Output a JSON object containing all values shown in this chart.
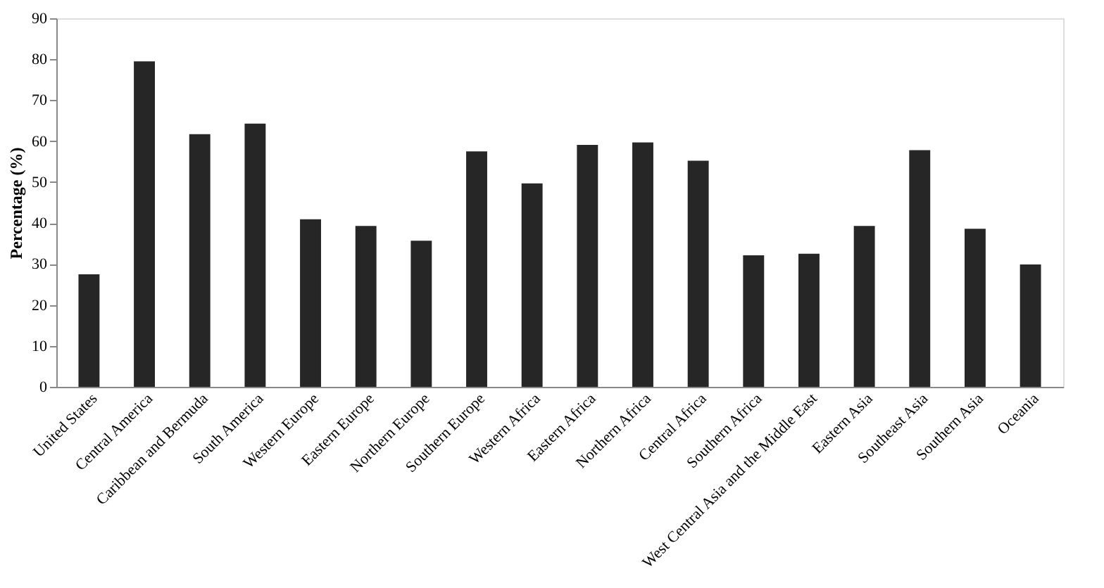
{
  "chart_data": {
    "type": "bar",
    "ylabel": "Percentage (%)",
    "categories": [
      "United States",
      "Central America",
      "Caribbean and Bermuda",
      "South America",
      "Western Europe",
      "Eastern Europe",
      "Northern Europe",
      "Southern Europe",
      "Western Africa",
      "Eastern Africa",
      "Northern Africa",
      "Central Africa",
      "Southern Africa",
      "West Central Asia and the Middle East",
      "Eastern Asia",
      "Southeast Asia",
      "Southern Asia",
      "Oceania"
    ],
    "values": [
      27.5,
      79.5,
      61.7,
      64.3,
      40.9,
      39.3,
      35.7,
      57.5,
      49.7,
      59.1,
      59.7,
      55.2,
      32.1,
      32.5,
      39.3,
      57.8,
      38.6,
      29.9
    ],
    "color": "#262626",
    "ylim": [
      0,
      90
    ],
    "yticks": [
      0,
      10,
      20,
      30,
      40,
      50,
      60,
      70,
      80,
      90
    ],
    "grid": false
  }
}
